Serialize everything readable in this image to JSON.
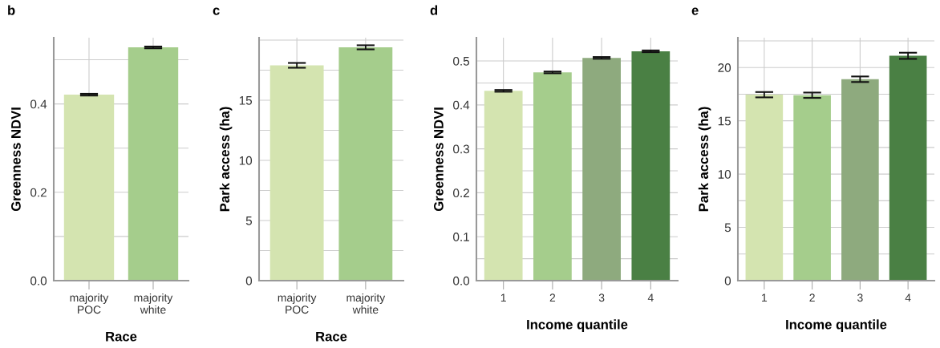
{
  "chart_data": [
    {
      "type": "bar",
      "title": "b",
      "xlabel": "Race",
      "ylabel": "Greenness NDVI",
      "categories": [
        "majority\nPOC",
        "majority\nwhite"
      ],
      "values": [
        0.421,
        0.528
      ],
      "errors": [
        0.002,
        0.002
      ],
      "colors": [
        "#d4e4b0",
        "#a5cd8c"
      ],
      "ylim": [
        0,
        0.55
      ],
      "yticks": [
        {
          "value": 0,
          "label": "0.0"
        },
        {
          "value": 0.1,
          "label": null
        },
        {
          "value": 0.2,
          "label": "0.2"
        },
        {
          "value": 0.3,
          "label": null
        },
        {
          "value": 0.4,
          "label": "0.4"
        },
        {
          "value": 0.5,
          "label": null
        }
      ],
      "grid": true
    },
    {
      "type": "bar",
      "title": "c",
      "xlabel": "Race",
      "ylabel": "Park access (ha)",
      "categories": [
        "majority\nPOC",
        "majority\nwhite"
      ],
      "values": [
        17.9,
        19.4
      ],
      "errors": [
        0.2,
        0.17
      ],
      "colors": [
        "#d4e4b0",
        "#a5cd8c"
      ],
      "ylim": [
        0,
        20.2
      ],
      "yticks": [
        0,
        {
          "value": 2.5,
          "label": null
        },
        5,
        {
          "value": 7.5,
          "label": null
        },
        10,
        {
          "value": 12.5,
          "label": null
        },
        15,
        {
          "value": 17.5,
          "label": null
        },
        {
          "value": 20,
          "label": null
        }
      ],
      "grid": true
    },
    {
      "type": "bar",
      "title": "d",
      "xlabel": "Income quantile",
      "ylabel": "Greenness NDVI",
      "categories": [
        "1",
        "2",
        "3",
        "4"
      ],
      "values": [
        0.432,
        0.474,
        0.507,
        0.522
      ],
      "errors": [
        0.002,
        0.002,
        0.002,
        0.002
      ],
      "colors": [
        "#d4e4b0",
        "#a5cd8c",
        "#8eaa7e",
        "#4a8044"
      ],
      "ylim": [
        0,
        0.553
      ],
      "yticks": [
        {
          "value": 0,
          "label": "0.0"
        },
        {
          "value": 0.05,
          "label": null
        },
        0.1,
        {
          "value": 0.15,
          "label": null
        },
        0.2,
        {
          "value": 0.25,
          "label": null
        },
        0.3,
        {
          "value": 0.35,
          "label": null
        },
        0.4,
        {
          "value": 0.45,
          "label": null
        },
        0.5
      ],
      "grid": true
    },
    {
      "type": "bar",
      "title": "e",
      "xlabel": "Income quantile",
      "ylabel": "Park access (ha)",
      "categories": [
        "1",
        "2",
        "3",
        "4"
      ],
      "values": [
        17.45,
        17.4,
        18.9,
        21.1
      ],
      "errors": [
        0.25,
        0.25,
        0.26,
        0.29
      ],
      "colors": [
        "#d4e4b0",
        "#a5cd8c",
        "#8eaa7e",
        "#4a8044"
      ],
      "ylim": [
        0,
        22.8
      ],
      "yticks": [
        0,
        {
          "value": 2.5,
          "label": null
        },
        5,
        {
          "value": 7.5,
          "label": null
        },
        10,
        {
          "value": 12.5,
          "label": null
        },
        15,
        {
          "value": 17.5,
          "label": null
        },
        20,
        {
          "value": 22.5,
          "label": null
        }
      ],
      "grid": true
    }
  ]
}
